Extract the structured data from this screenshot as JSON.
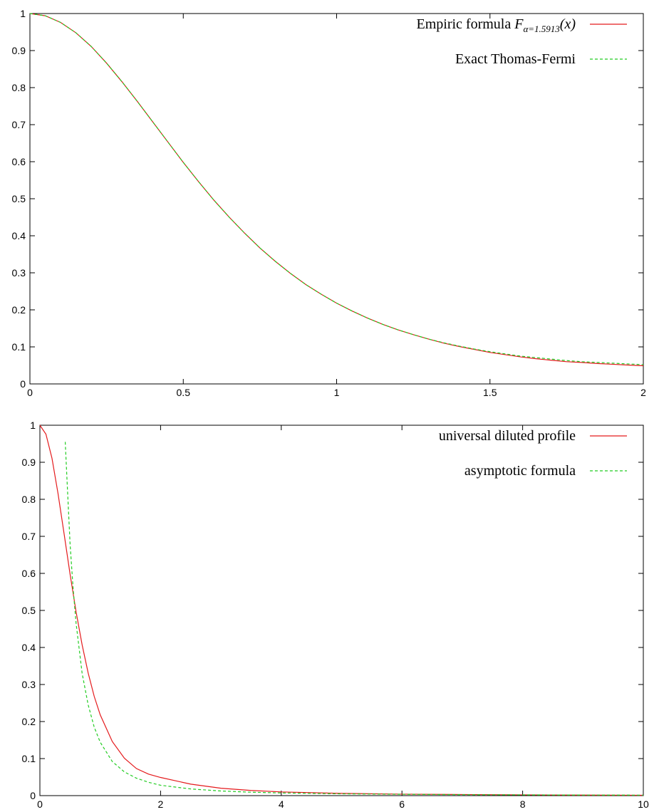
{
  "chart_data": [
    {
      "type": "line",
      "title": "",
      "xlabel": "",
      "ylabel": "",
      "xlim": [
        0,
        2
      ],
      "ylim": [
        0,
        1
      ],
      "xticks": [
        "0",
        "0.5",
        "1",
        "1.5",
        "2"
      ],
      "yticks": [
        "0",
        "0.1",
        "0.2",
        "0.3",
        "0.4",
        "0.5",
        "0.6",
        "0.7",
        "0.8",
        "0.9",
        "1"
      ],
      "grid": false,
      "legend_position": "top-right",
      "legend": [
        {
          "prefix": "Empiric formula ",
          "math_base": "F",
          "math_sub": "α=1.5913",
          "math_suffix": "(x)",
          "color": "#e41a1c",
          "style": "solid"
        },
        {
          "label": "Exact Thomas-Fermi",
          "color": "#22cc22",
          "style": "dashed"
        }
      ],
      "series": [
        {
          "color": "#e41a1c",
          "style": "solid",
          "x": [
            0,
            0.05,
            0.1,
            0.15,
            0.2,
            0.25,
            0.3,
            0.35,
            0.4,
            0.45,
            0.5,
            0.55,
            0.6,
            0.65,
            0.7,
            0.75,
            0.8,
            0.85,
            0.9,
            0.95,
            1.0,
            1.05,
            1.1,
            1.15,
            1.2,
            1.25,
            1.3,
            1.35,
            1.4,
            1.45,
            1.5,
            1.55,
            1.6,
            1.65,
            1.7,
            1.75,
            1.8,
            1.85,
            1.9,
            1.95,
            2.0
          ],
          "y": [
            1.0,
            0.994,
            0.976,
            0.948,
            0.911,
            0.866,
            0.816,
            0.763,
            0.708,
            0.653,
            0.598,
            0.546,
            0.496,
            0.45,
            0.407,
            0.367,
            0.331,
            0.298,
            0.268,
            0.242,
            0.218,
            0.197,
            0.178,
            0.161,
            0.146,
            0.133,
            0.121,
            0.11,
            0.101,
            0.093,
            0.085,
            0.079,
            0.073,
            0.068,
            0.064,
            0.06,
            0.058,
            0.055,
            0.053,
            0.051,
            0.049
          ]
        },
        {
          "color": "#22cc22",
          "style": "dashed",
          "x": [
            0,
            0.05,
            0.1,
            0.15,
            0.2,
            0.25,
            0.3,
            0.35,
            0.4,
            0.45,
            0.5,
            0.55,
            0.6,
            0.65,
            0.7,
            0.75,
            0.8,
            0.85,
            0.9,
            0.95,
            1.0,
            1.05,
            1.1,
            1.15,
            1.2,
            1.25,
            1.3,
            1.35,
            1.4,
            1.45,
            1.5,
            1.55,
            1.6,
            1.65,
            1.7,
            1.75,
            1.8,
            1.85,
            1.9,
            1.95,
            2.0
          ],
          "y": [
            1.0,
            0.994,
            0.976,
            0.948,
            0.911,
            0.866,
            0.816,
            0.763,
            0.708,
            0.653,
            0.598,
            0.546,
            0.496,
            0.45,
            0.407,
            0.367,
            0.331,
            0.298,
            0.268,
            0.242,
            0.218,
            0.197,
            0.178,
            0.161,
            0.146,
            0.133,
            0.121,
            0.111,
            0.102,
            0.094,
            0.087,
            0.081,
            0.075,
            0.071,
            0.067,
            0.063,
            0.06,
            0.058,
            0.056,
            0.054,
            0.052
          ]
        }
      ]
    },
    {
      "type": "line",
      "title": "",
      "xlabel": "",
      "ylabel": "",
      "xlim": [
        0,
        10
      ],
      "ylim": [
        0,
        1
      ],
      "xticks": [
        "0",
        "2",
        "4",
        "6",
        "8",
        "10"
      ],
      "yticks": [
        "0",
        "0.1",
        "0.2",
        "0.3",
        "0.4",
        "0.5",
        "0.6",
        "0.7",
        "0.8",
        "0.9",
        "1"
      ],
      "grid": false,
      "legend_position": "top-right",
      "legend": [
        {
          "label": "universal diluted profile",
          "color": "#e41a1c",
          "style": "solid"
        },
        {
          "label": "asymptotic formula",
          "color": "#22cc22",
          "style": "dashed"
        }
      ],
      "series": [
        {
          "color": "#e41a1c",
          "style": "solid",
          "x": [
            0,
            0.1,
            0.2,
            0.3,
            0.4,
            0.5,
            0.6,
            0.7,
            0.8,
            0.9,
            1.0,
            1.2,
            1.4,
            1.6,
            1.8,
            2.0,
            2.5,
            3.0,
            3.5,
            4.0,
            5.0,
            6.0,
            7.0,
            8.0,
            9.0,
            10.0
          ],
          "y": [
            1.0,
            0.976,
            0.911,
            0.816,
            0.708,
            0.598,
            0.496,
            0.407,
            0.331,
            0.268,
            0.218,
            0.146,
            0.101,
            0.073,
            0.058,
            0.049,
            0.031,
            0.02,
            0.014,
            0.01,
            0.006,
            0.004,
            0.003,
            0.002,
            0.0015,
            0.001
          ]
        },
        {
          "color": "#22cc22",
          "style": "dashed",
          "x": [
            0.42,
            0.45,
            0.5,
            0.55,
            0.6,
            0.7,
            0.8,
            0.9,
            1.0,
            1.2,
            1.4,
            1.6,
            1.8,
            2.0,
            2.5,
            3.0,
            3.5,
            4.0,
            5.0,
            6.0,
            7.0,
            8.0,
            9.0,
            10.0
          ],
          "y": [
            0.955,
            0.85,
            0.68,
            0.56,
            0.465,
            0.33,
            0.245,
            0.185,
            0.144,
            0.092,
            0.064,
            0.047,
            0.036,
            0.028,
            0.018,
            0.0125,
            0.0092,
            0.0072,
            0.0048,
            0.0035,
            0.0026,
            0.002,
            0.0016,
            0.0013
          ]
        }
      ]
    }
  ]
}
